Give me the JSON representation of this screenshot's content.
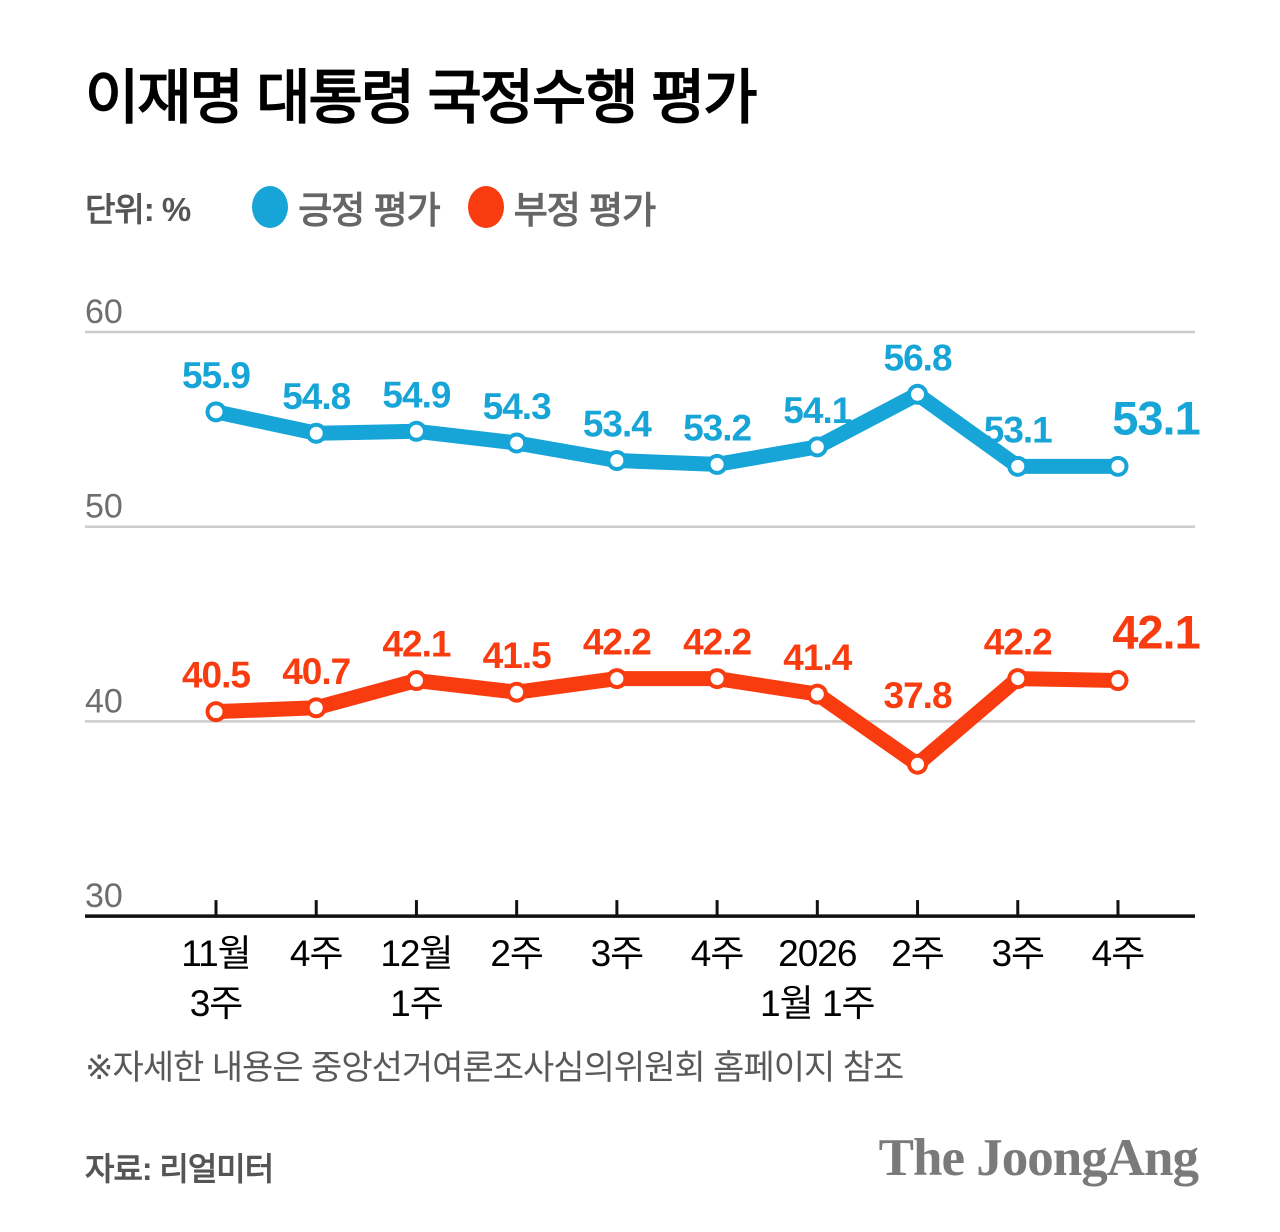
{
  "title": "이재명 대통령 국정수행 평가",
  "legend": {
    "unit_label": "단위: %",
    "items": [
      {
        "key": "positive",
        "label": "긍정 평가",
        "color": "#17A5D8"
      },
      {
        "key": "negative",
        "label": "부정 평가",
        "color": "#F93C10"
      }
    ]
  },
  "chart_data": {
    "type": "line",
    "title": "이재명 대통령 국정수행 평가",
    "unit": "%",
    "categories": [
      [
        "11월",
        "3주"
      ],
      [
        "4주"
      ],
      [
        "12월",
        "1주"
      ],
      [
        "2주"
      ],
      [
        "3주"
      ],
      [
        "4주"
      ],
      [
        "2026",
        "1월 1주"
      ],
      [
        "2주"
      ],
      [
        "3주"
      ],
      [
        "4주"
      ]
    ],
    "series": [
      {
        "key": "positive",
        "name": "긍정 평가",
        "color": "#17A5D8",
        "values": [
          55.9,
          54.8,
          54.9,
          54.3,
          53.4,
          53.2,
          54.1,
          56.8,
          53.1,
          53.1
        ]
      },
      {
        "key": "negative",
        "name": "부정 평가",
        "color": "#F93C10",
        "values": [
          40.5,
          40.7,
          42.1,
          41.5,
          42.2,
          42.2,
          41.4,
          37.8,
          42.2,
          42.1
        ]
      }
    ],
    "yticks": [
      60,
      50,
      40,
      30
    ],
    "ylim": [
      30,
      63
    ],
    "xlabel": "",
    "ylabel": "",
    "grid": "horizontal",
    "legend_position": "top",
    "last_value_emphasized": true
  },
  "footnote": "※자세한 내용은 중앙선거여론조사심의위원회 홈페이지 참조",
  "source": "자료: 리얼미터",
  "brand": "The JoongAng"
}
